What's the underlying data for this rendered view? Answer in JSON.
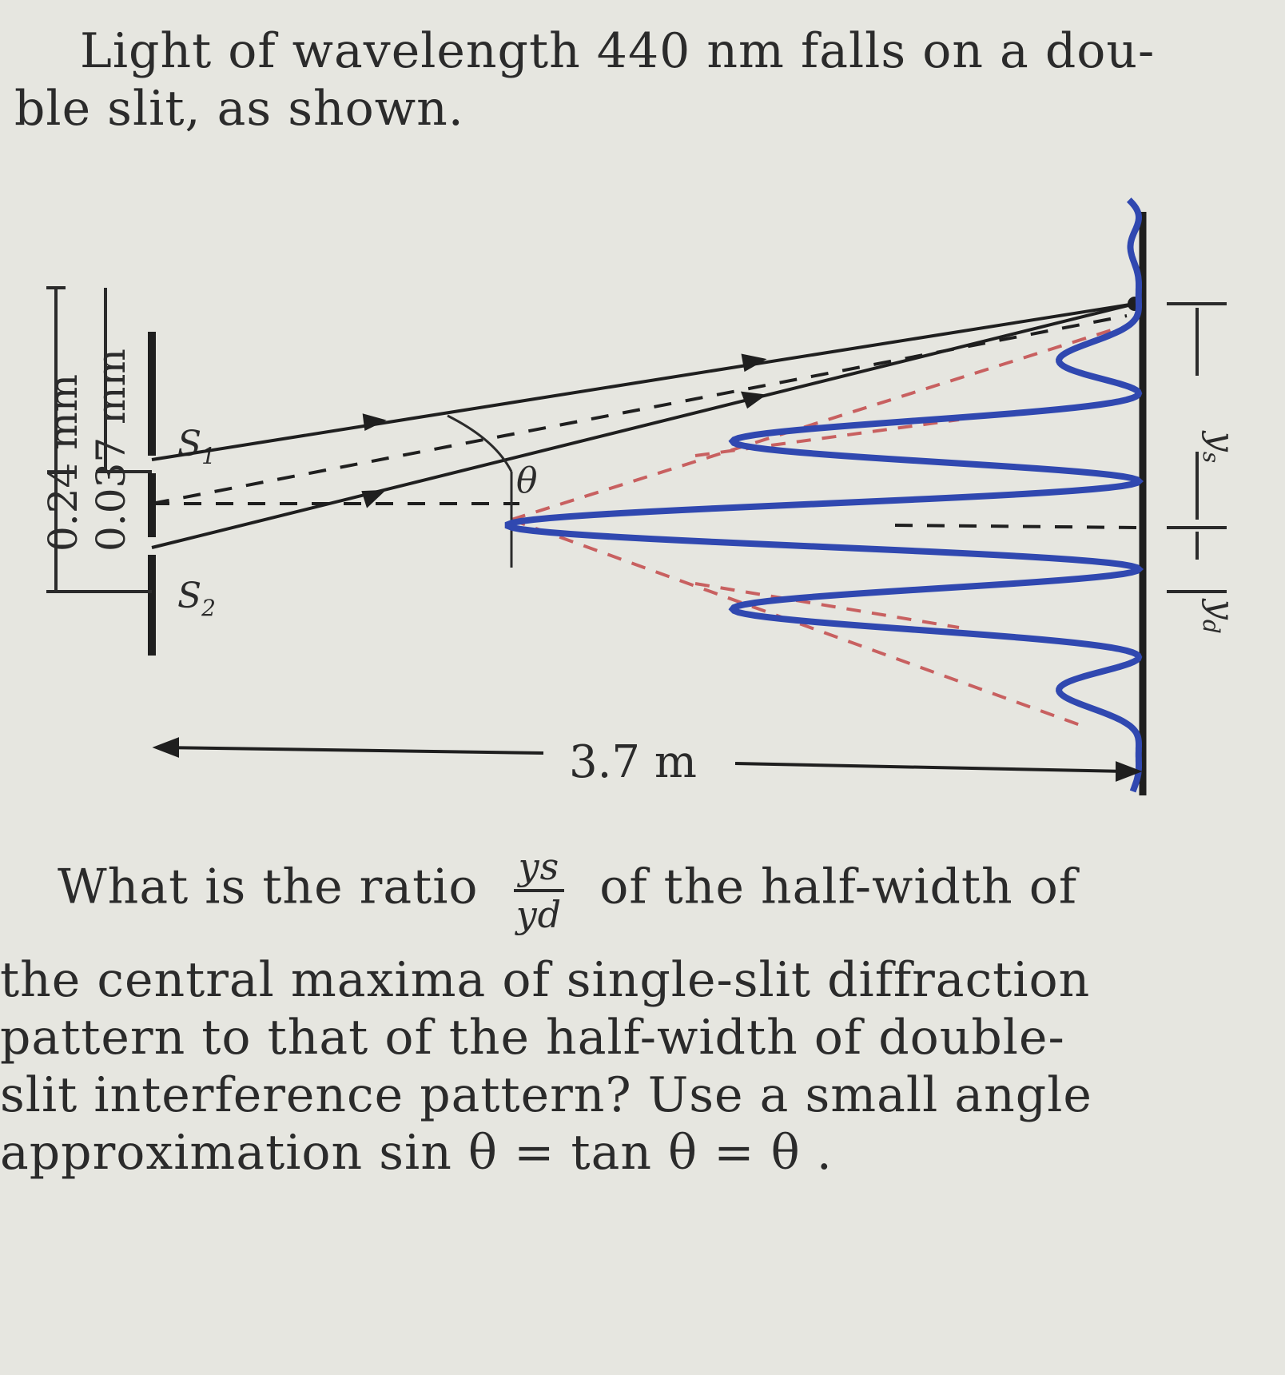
{
  "intro": {
    "line1": "Light of wavelength 440 nm falls on a dou-",
    "line2": "ble slit, as shown."
  },
  "figure": {
    "slit_separation": "0.24 mm",
    "slit_width": "0.037 mm",
    "slit1_label": "S",
    "slit1_sub": "1",
    "slit2_label": "S",
    "slit2_sub": "2",
    "angle_label": "θ",
    "distance_label": "3.7 m",
    "ys_label": "y",
    "ys_sub": "s",
    "yd_label": "y",
    "yd_sub": "d",
    "colors": {
      "pattern": "#3048b0",
      "envelope": "#c86060",
      "ink": "#1f1f1f"
    }
  },
  "question": {
    "pre": "What is the ratio",
    "frac_num": "ys",
    "frac_den": "yd",
    "post": "of the half-width of",
    "line2": "the central maxima of single-slit diffraction",
    "line3": "pattern to that of the half-width of double-",
    "line4": "slit interference pattern? Use a small angle",
    "line5": "approximation sin θ = tan θ = θ ."
  }
}
